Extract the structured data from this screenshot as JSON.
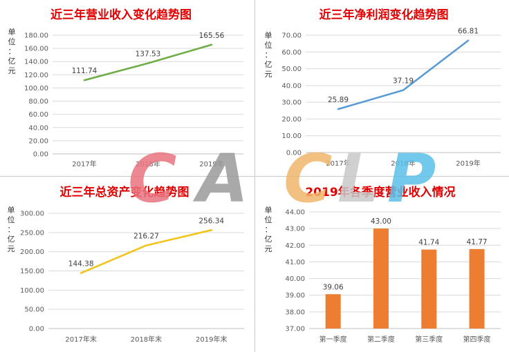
{
  "watermark": {
    "text": "CACLP",
    "letters": [
      "C",
      "A",
      "C",
      "L",
      "P"
    ],
    "colors": [
      "#e8737e",
      "#9a9a9a",
      "#f0b56a",
      "#c8c8c8",
      "#5bc0e8"
    ]
  },
  "chart_data": [
    {
      "id": "revenue",
      "type": "line",
      "title": "近三年营业收入变化趋势图",
      "ylabel": "单位：亿元",
      "ylabel_chars": [
        "单",
        "位",
        "：",
        "亿",
        "元"
      ],
      "categories": [
        "2017年",
        "2018年",
        "2019年"
      ],
      "series": [
        {
          "values": [
            111.74,
            137.53,
            165.56
          ],
          "color": "#70ad47"
        }
      ],
      "ylim": [
        0,
        180
      ],
      "yticks": [
        "0.00",
        "20.00",
        "40.00",
        "60.00",
        "80.00",
        "100.00",
        "120.00",
        "140.00",
        "160.00",
        "180.00"
      ],
      "data_labels": [
        "111.74",
        "137.53",
        "165.56"
      ],
      "grid": true,
      "legend": "none"
    },
    {
      "id": "net_profit",
      "type": "line",
      "title": "近三年净利润变化趋势图",
      "ylabel": "单位：亿元",
      "ylabel_chars": [
        "单",
        "位",
        "：",
        "亿",
        "元"
      ],
      "categories": [
        "2017年",
        "2018年",
        "2019年"
      ],
      "series": [
        {
          "values": [
            25.89,
            37.19,
            66.81
          ],
          "color": "#5b9bd5"
        }
      ],
      "ylim": [
        0,
        70
      ],
      "yticks": [
        "0.00",
        "10.00",
        "20.00",
        "30.00",
        "40.00",
        "50.00",
        "60.00",
        "70.00"
      ],
      "data_labels": [
        "25.89",
        "37.19",
        "66.81"
      ],
      "grid": true,
      "legend": "none"
    },
    {
      "id": "total_assets",
      "type": "line",
      "title": "近三年总资产变化趋势图",
      "ylabel": "单位：亿元",
      "ylabel_chars": [
        "单",
        "位",
        "：",
        "亿",
        "元"
      ],
      "categories": [
        "2017年末",
        "2018年末",
        "2019年末"
      ],
      "series": [
        {
          "values": [
            144.38,
            216.27,
            256.34
          ],
          "color": "#f0c419"
        }
      ],
      "ylim": [
        0,
        300
      ],
      "yticks": [
        "0.00",
        "50.00",
        "100.00",
        "150.00",
        "200.00",
        "250.00",
        "300.00"
      ],
      "data_labels": [
        "144.38",
        "216.27",
        "256.34"
      ],
      "grid": true,
      "legend": "none"
    },
    {
      "id": "quarterly_revenue",
      "type": "bar",
      "title": "2019年各季度营业收入情况",
      "ylabel": "单位：亿元",
      "ylabel_chars": [
        "单",
        "位",
        "：",
        "亿",
        "元"
      ],
      "categories": [
        "第一季度",
        "第二季度",
        "第三季度",
        "第四季度"
      ],
      "series": [
        {
          "values": [
            39.06,
            43.0,
            41.74,
            41.77
          ],
          "color": "#ed7d31"
        }
      ],
      "ylim": [
        37,
        44
      ],
      "yticks": [
        "37.00",
        "38.00",
        "39.00",
        "40.00",
        "41.00",
        "42.00",
        "43.00",
        "44.00"
      ],
      "data_labels": [
        "39.06",
        "43.00",
        "41.74",
        "41.77"
      ],
      "grid": true,
      "legend": "none"
    }
  ]
}
